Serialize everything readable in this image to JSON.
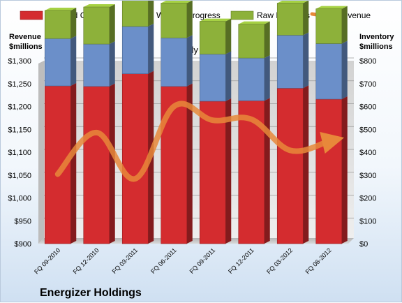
{
  "chart_data": {
    "type": "bar",
    "stacked": true,
    "subtitle": "Quarterly Periods",
    "company": "Energizer Holdings",
    "left_axis_title": [
      "Revenue",
      "$millions"
    ],
    "right_axis_title": [
      "Inventory",
      "$millions"
    ],
    "categories": [
      "FQ 09-2010",
      "FQ 12-2010",
      "FQ 03-2011",
      "FQ 06-2011",
      "FQ 09-2011",
      "FQ 12-2011",
      "FQ 03-2012",
      "FQ 06-2012"
    ],
    "series": [
      {
        "name": "Finished Goods",
        "color": "#d42c2f",
        "axis": "right",
        "values": [
          690,
          688,
          743,
          688,
          623,
          625,
          680,
          632
        ]
      },
      {
        "name": "Work in Progress",
        "color": "#6b8fc9",
        "axis": "right",
        "values": [
          207,
          185,
          207,
          212,
          206,
          187,
          232,
          243
        ]
      },
      {
        "name": "Raw Materials",
        "color": "#8db13a",
        "axis": "right",
        "values": [
          123,
          162,
          147,
          152,
          143,
          148,
          140,
          152
        ]
      }
    ],
    "line_series": {
      "name": "Revenue",
      "color": "#e8883a",
      "axis": "left",
      "values": [
        1052,
        1143,
        1042,
        1200,
        1170,
        1172,
        1104,
        1124
      ]
    },
    "left_axis": {
      "min": 900,
      "max": 1300,
      "step": 50,
      "ticks": [
        "$900",
        "$950",
        "$1,000",
        "$1,050",
        "$1,100",
        "$1,150",
        "$1,200",
        "$1,250",
        "$1,300"
      ]
    },
    "right_axis": {
      "min": 0,
      "max": 800,
      "step": 100,
      "ticks": [
        "$0",
        "$100",
        "$200",
        "$300",
        "$400",
        "$500",
        "$600",
        "$700",
        "$800"
      ]
    },
    "grid": true,
    "legend_position": "top"
  }
}
